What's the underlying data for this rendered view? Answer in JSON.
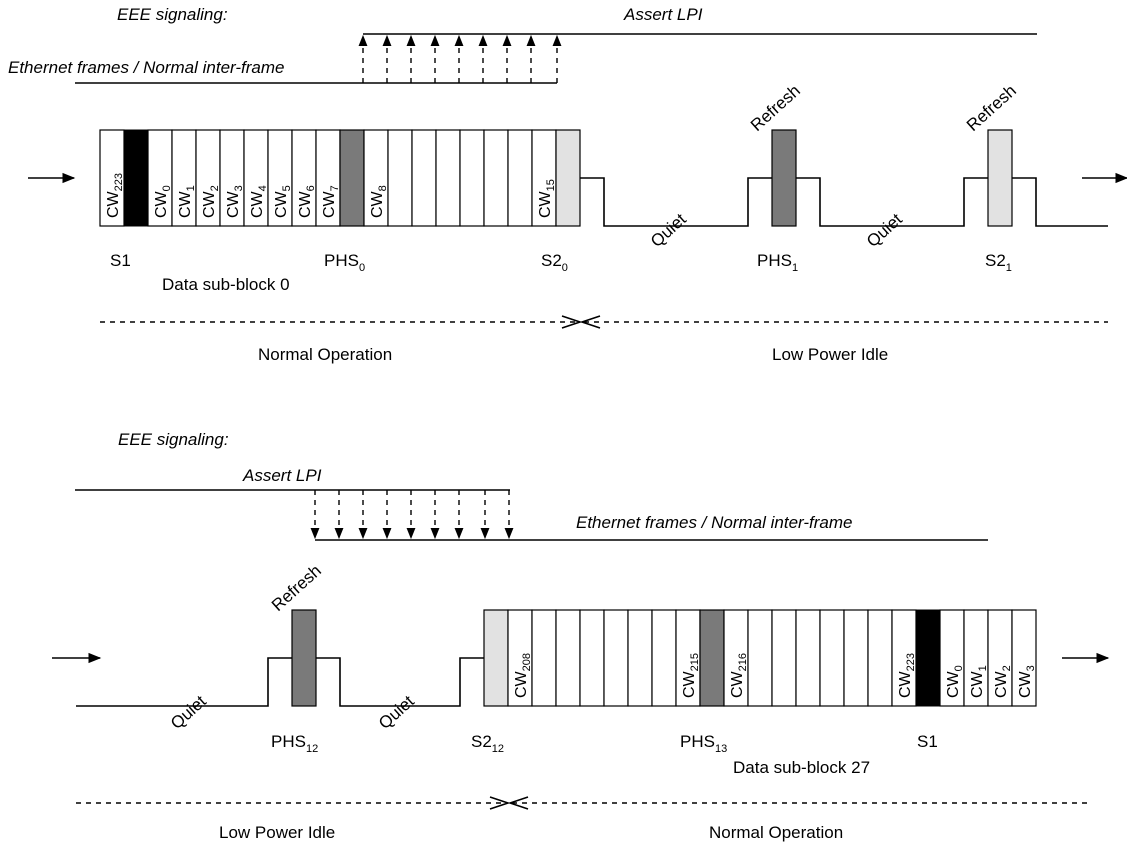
{
  "colors": {
    "s1": "#000000",
    "phs": "#7a7a7a",
    "s2": "#e2e2e2",
    "block": "#ffffff",
    "line": "#000000"
  },
  "top": {
    "eee_label": "EEE signaling:",
    "assert_lpi": "Assert LPI",
    "frames_label": "Ethernet frames / Normal inter-frame",
    "codewords": [
      {
        "base": "CW",
        "sub": "223"
      },
      {
        "base": "CW",
        "sub": "0"
      },
      {
        "base": "CW",
        "sub": "1"
      },
      {
        "base": "CW",
        "sub": "2"
      },
      {
        "base": "CW",
        "sub": "3"
      },
      {
        "base": "CW",
        "sub": "4"
      },
      {
        "base": "CW",
        "sub": "5"
      },
      {
        "base": "CW",
        "sub": "6"
      },
      {
        "base": "CW",
        "sub": "7"
      },
      {
        "base": "CW",
        "sub": "8"
      },
      {
        "base": "CW",
        "sub": "15"
      }
    ],
    "refresh": "Refresh",
    "quiet": "Quiet",
    "s1": "S1",
    "phs0": {
      "base": "PHS",
      "sub": "0"
    },
    "s2_0": {
      "base": "S2",
      "sub": "0"
    },
    "phs1": {
      "base": "PHS",
      "sub": "1"
    },
    "s2_1": {
      "base": "S2",
      "sub": "1"
    },
    "sub_block": "Data sub-block 0",
    "mode_left": "Normal Operation",
    "mode_right": "Low Power Idle"
  },
  "bottom": {
    "eee_label": "EEE signaling:",
    "assert_lpi": "Assert LPI",
    "frames_label": "Ethernet frames / Normal inter-frame",
    "codewords": [
      {
        "base": "CW",
        "sub": "208"
      },
      {
        "base": "CW",
        "sub": "215"
      },
      {
        "base": "CW",
        "sub": "216"
      },
      {
        "base": "CW",
        "sub": "223"
      },
      {
        "base": "CW",
        "sub": "0"
      },
      {
        "base": "CW",
        "sub": "1"
      },
      {
        "base": "CW",
        "sub": "2"
      },
      {
        "base": "CW",
        "sub": "3"
      }
    ],
    "refresh": "Refresh",
    "quiet": "Quiet",
    "phs12": {
      "base": "PHS",
      "sub": "12"
    },
    "s2_12": {
      "base": "S2",
      "sub": "12"
    },
    "phs13": {
      "base": "PHS",
      "sub": "13"
    },
    "s1": "S1",
    "sub_block": "Data sub-block 27",
    "mode_left": "Low Power Idle",
    "mode_right": "Normal Operation"
  }
}
